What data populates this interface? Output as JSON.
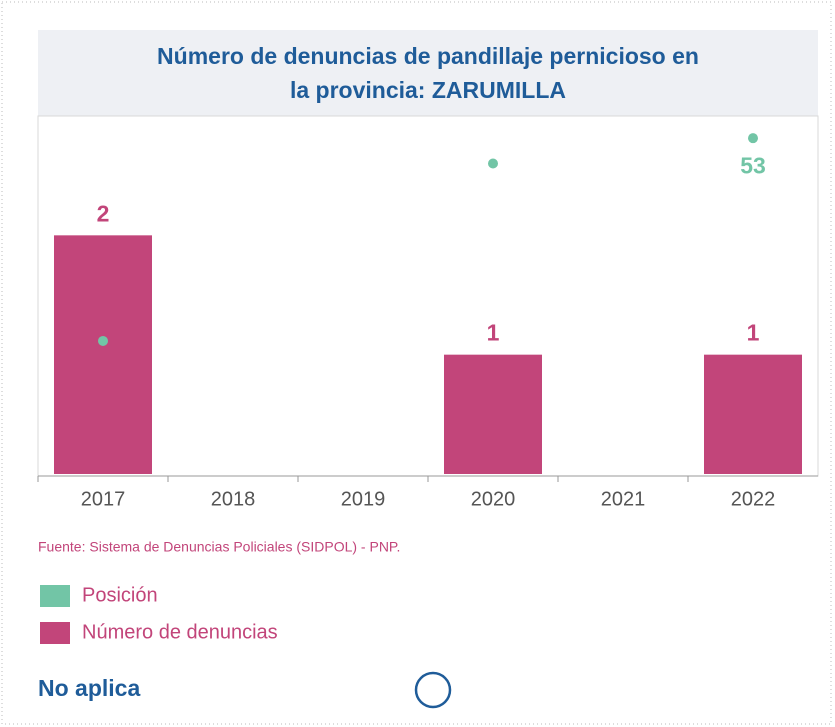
{
  "chart_data": {
    "type": "bar",
    "title": "Número de denuncias de pandillaje pernicioso en la provincia: ZARUMILLA",
    "categories": [
      "2017",
      "2018",
      "2019",
      "2020",
      "2021",
      "2022"
    ],
    "series": [
      {
        "name": "Número de denuncias",
        "type": "bar",
        "color": "#c2457a",
        "values": [
          2,
          null,
          null,
          1,
          null,
          1
        ]
      },
      {
        "name": "Posición",
        "type": "scatter",
        "axis": "y2",
        "color": "#72c5a6",
        "values": [
          21,
          null,
          null,
          49,
          null,
          53
        ],
        "value_labels": [
          null,
          null,
          null,
          null,
          null,
          "53"
        ]
      }
    ],
    "ylim": [
      0,
      3
    ],
    "y2lim": [
      0,
      56.5
    ],
    "source": "Fuente: Sistema de Denuncias Policiales (SIDPOL) - PNP.",
    "note": "No aplica"
  }
}
